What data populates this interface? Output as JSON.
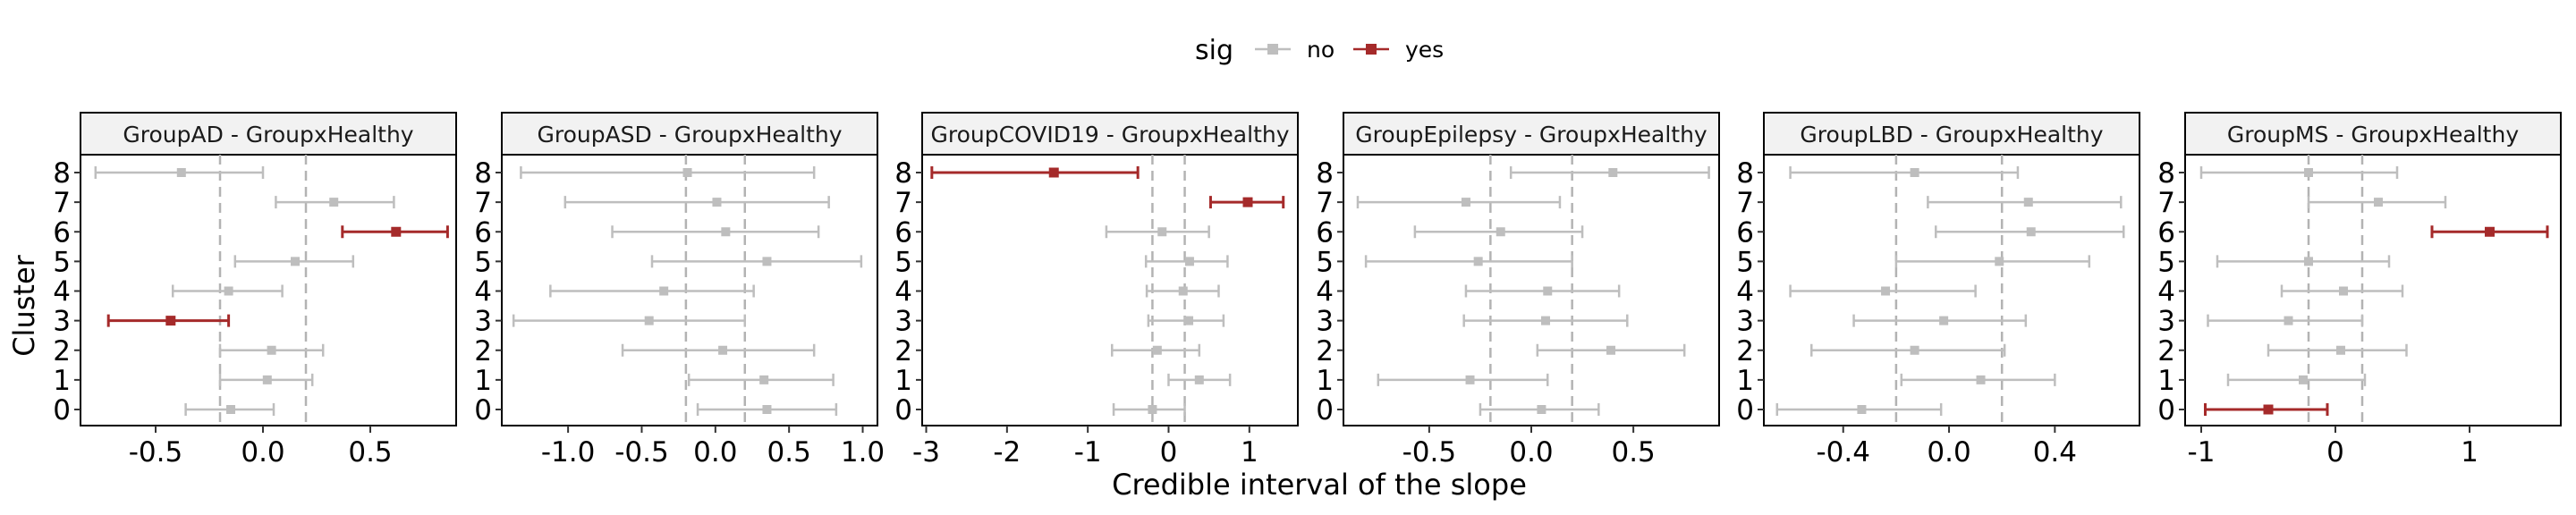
{
  "chart_data": {
    "type": "forest",
    "xlabel": "Credible interval of the slope",
    "ylabel": "Cluster",
    "y_categories": [
      "0",
      "1",
      "2",
      "3",
      "4",
      "5",
      "6",
      "7",
      "8"
    ],
    "reference_lines": [
      -0.2,
      0.2
    ],
    "legend": {
      "title": "sig",
      "placement": "top-center",
      "entries": [
        {
          "label": "no",
          "color": "#bebebe"
        },
        {
          "label": "yes",
          "color": "#a52a2a"
        }
      ]
    },
    "facets": [
      {
        "title": "GroupAD - GroupxHealthy",
        "xlim": [
          -0.85,
          0.9
        ],
        "xticks": [
          -0.5,
          0.0,
          0.5
        ],
        "xtick_labels": [
          "-0.5",
          "0.0",
          "0.5"
        ],
        "points": [
          {
            "cluster": "0",
            "estimate": -0.15,
            "lower": -0.36,
            "upper": 0.05,
            "sig": "no"
          },
          {
            "cluster": "1",
            "estimate": 0.02,
            "lower": -0.2,
            "upper": 0.23,
            "sig": "no"
          },
          {
            "cluster": "2",
            "estimate": 0.04,
            "lower": -0.2,
            "upper": 0.28,
            "sig": "no"
          },
          {
            "cluster": "3",
            "estimate": -0.43,
            "lower": -0.72,
            "upper": -0.16,
            "sig": "yes"
          },
          {
            "cluster": "4",
            "estimate": -0.16,
            "lower": -0.42,
            "upper": 0.09,
            "sig": "no"
          },
          {
            "cluster": "5",
            "estimate": 0.15,
            "lower": -0.13,
            "upper": 0.42,
            "sig": "no"
          },
          {
            "cluster": "6",
            "estimate": 0.62,
            "lower": 0.37,
            "upper": 0.86,
            "sig": "yes"
          },
          {
            "cluster": "7",
            "estimate": 0.33,
            "lower": 0.06,
            "upper": 0.61,
            "sig": "no"
          },
          {
            "cluster": "8",
            "estimate": -0.38,
            "lower": -0.78,
            "upper": 0.0,
            "sig": "no"
          }
        ]
      },
      {
        "title": "GroupASD - GroupxHealthy",
        "xlim": [
          -1.45,
          1.1
        ],
        "xticks": [
          -1.0,
          -0.5,
          0.0,
          0.5,
          1.0
        ],
        "xtick_labels": [
          "-1.0",
          "-0.5",
          "0.0",
          "0.5",
          "1.0"
        ],
        "points": [
          {
            "cluster": "0",
            "estimate": 0.35,
            "lower": -0.12,
            "upper": 0.82,
            "sig": "no"
          },
          {
            "cluster": "1",
            "estimate": 0.33,
            "lower": -0.18,
            "upper": 0.8,
            "sig": "no"
          },
          {
            "cluster": "2",
            "estimate": 0.05,
            "lower": -0.63,
            "upper": 0.67,
            "sig": "no"
          },
          {
            "cluster": "3",
            "estimate": -0.45,
            "lower": -1.37,
            "upper": 0.2,
            "sig": "no"
          },
          {
            "cluster": "4",
            "estimate": -0.35,
            "lower": -1.12,
            "upper": 0.26,
            "sig": "no"
          },
          {
            "cluster": "5",
            "estimate": 0.35,
            "lower": -0.43,
            "upper": 0.99,
            "sig": "no"
          },
          {
            "cluster": "6",
            "estimate": 0.07,
            "lower": -0.7,
            "upper": 0.7,
            "sig": "no"
          },
          {
            "cluster": "7",
            "estimate": 0.01,
            "lower": -1.02,
            "upper": 0.77,
            "sig": "no"
          },
          {
            "cluster": "8",
            "estimate": -0.19,
            "lower": -1.32,
            "upper": 0.67,
            "sig": "no"
          }
        ]
      },
      {
        "title": "GroupCOVID19 - GroupxHealthy",
        "xlim": [
          -3.05,
          1.6
        ],
        "xticks": [
          -3,
          -2,
          -1,
          0,
          1
        ],
        "xtick_labels": [
          "-3",
          "-2",
          "-1",
          "0",
          "1"
        ],
        "points": [
          {
            "cluster": "0",
            "estimate": -0.2,
            "lower": -0.68,
            "upper": 0.2,
            "sig": "no"
          },
          {
            "cluster": "1",
            "estimate": 0.38,
            "lower": 0.0,
            "upper": 0.76,
            "sig": "no"
          },
          {
            "cluster": "2",
            "estimate": -0.14,
            "lower": -0.7,
            "upper": 0.38,
            "sig": "no"
          },
          {
            "cluster": "3",
            "estimate": 0.25,
            "lower": -0.25,
            "upper": 0.68,
            "sig": "no"
          },
          {
            "cluster": "4",
            "estimate": 0.18,
            "lower": -0.27,
            "upper": 0.62,
            "sig": "no"
          },
          {
            "cluster": "5",
            "estimate": 0.26,
            "lower": -0.28,
            "upper": 0.73,
            "sig": "no"
          },
          {
            "cluster": "6",
            "estimate": -0.08,
            "lower": -0.77,
            "upper": 0.5,
            "sig": "no"
          },
          {
            "cluster": "7",
            "estimate": 0.98,
            "lower": 0.52,
            "upper": 1.42,
            "sig": "yes"
          },
          {
            "cluster": "8",
            "estimate": -1.42,
            "lower": -2.93,
            "upper": -0.38,
            "sig": "yes"
          }
        ]
      },
      {
        "title": "GroupEpilepsy - GroupxHealthy",
        "xlim": [
          -0.92,
          0.92
        ],
        "xticks": [
          -0.5,
          0.0,
          0.5
        ],
        "xtick_labels": [
          "-0.5",
          "0.0",
          "0.5"
        ],
        "points": [
          {
            "cluster": "0",
            "estimate": 0.05,
            "lower": -0.25,
            "upper": 0.33,
            "sig": "no"
          },
          {
            "cluster": "1",
            "estimate": -0.3,
            "lower": -0.75,
            "upper": 0.08,
            "sig": "no"
          },
          {
            "cluster": "2",
            "estimate": 0.39,
            "lower": 0.03,
            "upper": 0.75,
            "sig": "no"
          },
          {
            "cluster": "3",
            "estimate": 0.07,
            "lower": -0.33,
            "upper": 0.47,
            "sig": "no"
          },
          {
            "cluster": "4",
            "estimate": 0.08,
            "lower": -0.32,
            "upper": 0.43,
            "sig": "no"
          },
          {
            "cluster": "5",
            "estimate": -0.26,
            "lower": -0.81,
            "upper": 0.2,
            "sig": "no"
          },
          {
            "cluster": "6",
            "estimate": -0.15,
            "lower": -0.57,
            "upper": 0.25,
            "sig": "no"
          },
          {
            "cluster": "7",
            "estimate": -0.32,
            "lower": -0.85,
            "upper": 0.14,
            "sig": "no"
          },
          {
            "cluster": "8",
            "estimate": 0.4,
            "lower": -0.1,
            "upper": 0.87,
            "sig": "no"
          }
        ]
      },
      {
        "title": "GroupLBD - GroupxHealthy",
        "xlim": [
          -0.7,
          0.72
        ],
        "xticks": [
          -0.4,
          0.0,
          0.4
        ],
        "xtick_labels": [
          "-0.4",
          "0.0",
          "0.4"
        ],
        "points": [
          {
            "cluster": "0",
            "estimate": -0.33,
            "lower": -0.65,
            "upper": -0.03,
            "sig": "no"
          },
          {
            "cluster": "1",
            "estimate": 0.12,
            "lower": -0.18,
            "upper": 0.4,
            "sig": "no"
          },
          {
            "cluster": "2",
            "estimate": -0.13,
            "lower": -0.52,
            "upper": 0.21,
            "sig": "no"
          },
          {
            "cluster": "3",
            "estimate": -0.02,
            "lower": -0.36,
            "upper": 0.29,
            "sig": "no"
          },
          {
            "cluster": "4",
            "estimate": -0.24,
            "lower": -0.6,
            "upper": 0.1,
            "sig": "no"
          },
          {
            "cluster": "5",
            "estimate": 0.19,
            "lower": -0.2,
            "upper": 0.53,
            "sig": "no"
          },
          {
            "cluster": "6",
            "estimate": 0.31,
            "lower": -0.05,
            "upper": 0.66,
            "sig": "no"
          },
          {
            "cluster": "7",
            "estimate": 0.3,
            "lower": -0.08,
            "upper": 0.65,
            "sig": "no"
          },
          {
            "cluster": "8",
            "estimate": -0.13,
            "lower": -0.6,
            "upper": 0.26,
            "sig": "no"
          }
        ]
      },
      {
        "title": "GroupMS - GroupxHealthy",
        "xlim": [
          -1.12,
          1.68
        ],
        "xticks": [
          -1,
          0,
          1
        ],
        "xtick_labels": [
          "-1",
          "0",
          "1"
        ],
        "points": [
          {
            "cluster": "0",
            "estimate": -0.5,
            "lower": -0.97,
            "upper": -0.06,
            "sig": "yes"
          },
          {
            "cluster": "1",
            "estimate": -0.24,
            "lower": -0.8,
            "upper": 0.22,
            "sig": "no"
          },
          {
            "cluster": "2",
            "estimate": 0.04,
            "lower": -0.5,
            "upper": 0.53,
            "sig": "no"
          },
          {
            "cluster": "3",
            "estimate": -0.35,
            "lower": -0.95,
            "upper": 0.2,
            "sig": "no"
          },
          {
            "cluster": "4",
            "estimate": 0.06,
            "lower": -0.4,
            "upper": 0.5,
            "sig": "no"
          },
          {
            "cluster": "5",
            "estimate": -0.2,
            "lower": -0.88,
            "upper": 0.4,
            "sig": "no"
          },
          {
            "cluster": "6",
            "estimate": 1.15,
            "lower": 0.72,
            "upper": 1.58,
            "sig": "yes"
          },
          {
            "cluster": "7",
            "estimate": 0.32,
            "lower": -0.2,
            "upper": 0.82,
            "sig": "no"
          },
          {
            "cluster": "8",
            "estimate": -0.2,
            "lower": -1.0,
            "upper": 0.46,
            "sig": "no"
          }
        ]
      }
    ]
  }
}
